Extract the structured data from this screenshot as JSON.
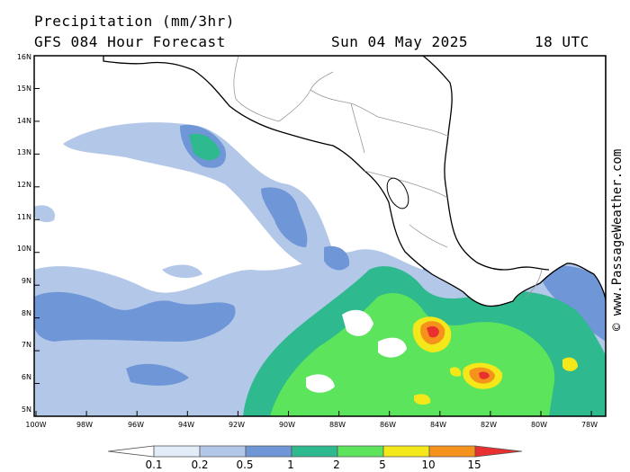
{
  "header": {
    "title": "Precipitation (mm/3hr)",
    "subtitle": "GFS 084 Hour Forecast",
    "datetime": "Sun 04 May 2025",
    "valid_time": "18 UTC"
  },
  "credit": "© www.PassageWeather.com",
  "map": {
    "lat_labels": [
      "16N",
      "15N",
      "14N",
      "13N",
      "12N",
      "11N",
      "10N",
      "9N",
      "8N",
      "7N",
      "6N",
      "5N"
    ],
    "lon_labels": [
      "100W",
      "98W",
      "96W",
      "94W",
      "92W",
      "90W",
      "88W",
      "86W",
      "84W",
      "82W",
      "80W",
      "78W"
    ],
    "land_color": "#ffffff",
    "border_color": "#000000"
  },
  "legend": {
    "labels": [
      "0.1",
      "0.2",
      "0.5",
      "1",
      "2",
      "5",
      "10",
      "15"
    ],
    "colors": [
      "#ffffff",
      "#e2ecf8",
      "#b3c8e8",
      "#6f96d6",
      "#2eb98e",
      "#5ce45c",
      "#f4e81a",
      "#f5921c",
      "#e83030"
    ]
  }
}
